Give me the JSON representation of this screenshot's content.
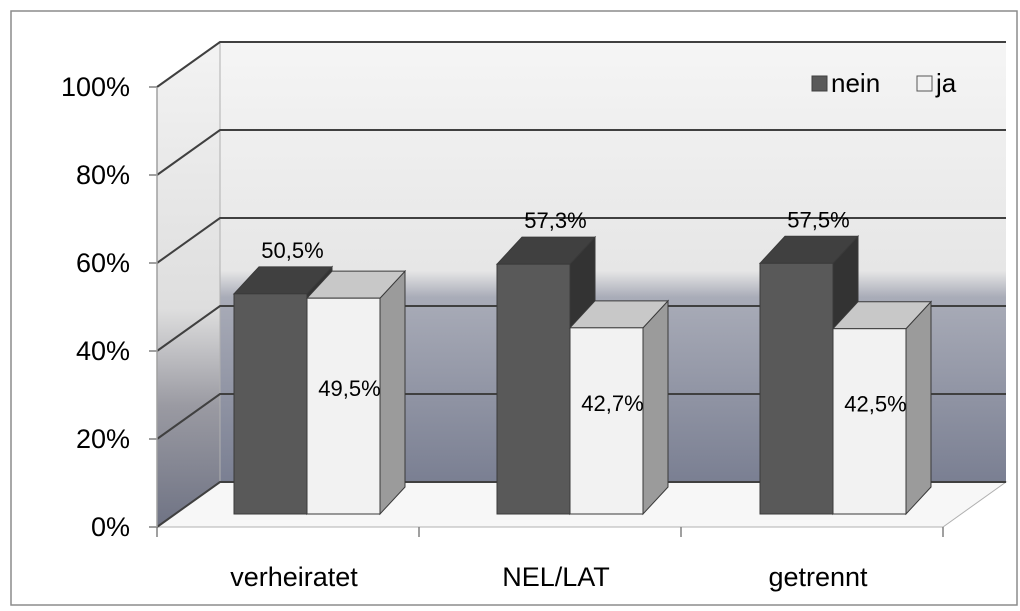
{
  "chart_data": {
    "type": "bar",
    "style": "3d-clustered-column",
    "categories": [
      "verheiratet",
      "NEL/LAT",
      "getrennt"
    ],
    "series": [
      {
        "name": "nein",
        "values": [
          50.5,
          57.3,
          57.5
        ],
        "labels": [
          "50,5%",
          "57,3%",
          "57,5%"
        ],
        "color": "#595959"
      },
      {
        "name": "ja",
        "values": [
          49.5,
          42.7,
          42.5
        ],
        "labels": [
          "49,5%",
          "42,7%",
          "42,5%"
        ],
        "color": "#f2f2f2"
      }
    ],
    "ylim": [
      0,
      100
    ],
    "yticks": [
      "0%",
      "20%",
      "40%",
      "60%",
      "80%",
      "100%"
    ],
    "grid": true,
    "legend_position": "top-right",
    "title": "",
    "xlabel": "",
    "ylabel": ""
  }
}
